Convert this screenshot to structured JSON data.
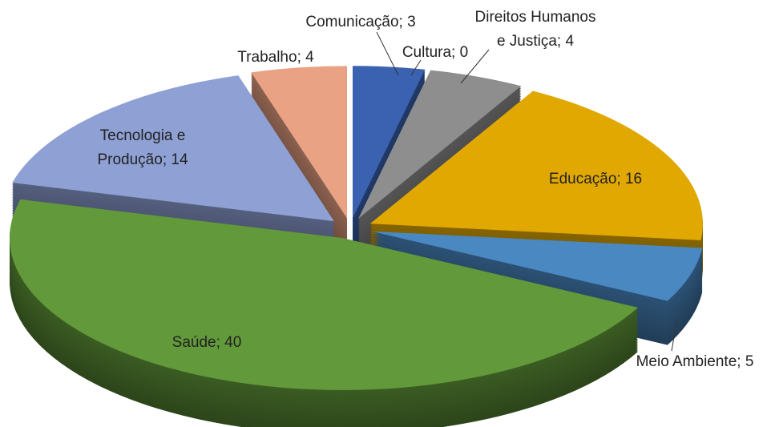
{
  "chart_data": {
    "type": "pie",
    "values": [
      3,
      0,
      4,
      16,
      5,
      40,
      14,
      4
    ],
    "value_labels": [
      "Comunicação; 3",
      "Cultura; 0",
      "Direitos Humanos\ne Justiça; 4",
      "Educação; 16",
      "Meio Ambiente; 5",
      "Saúde; 40",
      "Tecnologia e\nProdução; 14",
      "Trabalho; 4"
    ],
    "colors": [
      "#3a62b0",
      "#c0622a",
      "#8e8e8e",
      "#e0a800",
      "#4a88c2",
      "#62993a",
      "#8ea0d4",
      "#eaa284"
    ]
  }
}
